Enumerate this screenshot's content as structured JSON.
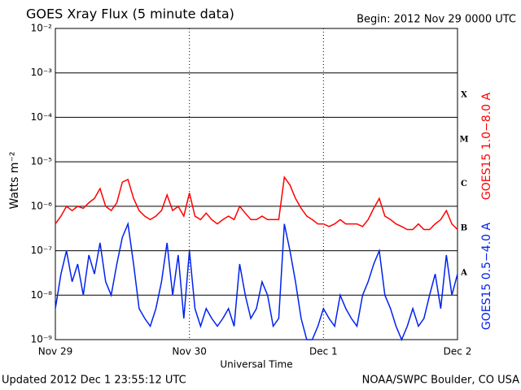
{
  "chart_data": {
    "type": "line",
    "title": "GOES Xray Flux (5 minute data)",
    "subtitle": "Begin:  2012 Nov 29 0000 UTC",
    "ylabel": "Watts m⁻²",
    "xlabel": "Universal Time",
    "footer_left": "Updated 2012 Dec  1 23:55:12 UTC",
    "footer_right": "NOAA/SWPC Boulder, CO USA",
    "flux_classes": [
      "X",
      "M",
      "C",
      "B",
      "A"
    ],
    "log_y": true,
    "grid": true,
    "xlim": [
      0,
      72
    ],
    "xticks": [
      {
        "value": 0,
        "label": "Nov 29"
      },
      {
        "value": 24,
        "label": "Nov 30"
      },
      {
        "value": 48,
        "label": "Dec 1"
      },
      {
        "value": 72,
        "label": "Dec 2"
      }
    ],
    "ylim": [
      1e-09,
      0.01
    ],
    "yticks": [
      {
        "value": 1e-09,
        "label": "10⁻⁹"
      },
      {
        "value": 1e-08,
        "label": "10⁻⁸"
      },
      {
        "value": 1e-07,
        "label": "10⁻⁷"
      },
      {
        "value": 1e-06,
        "label": "10⁻⁶"
      },
      {
        "value": 1e-05,
        "label": "10⁻⁵"
      },
      {
        "value": 0.0001,
        "label": "10⁻⁴"
      },
      {
        "value": 0.001,
        "label": "10⁻³"
      },
      {
        "value": 0.01,
        "label": "10⁻²"
      }
    ],
    "x": [
      0,
      1,
      2,
      3,
      4,
      5,
      6,
      7,
      8,
      9,
      10,
      11,
      12,
      13,
      14,
      15,
      16,
      17,
      18,
      19,
      20,
      21,
      22,
      23,
      24,
      25,
      26,
      27,
      28,
      29,
      30,
      31,
      32,
      33,
      34,
      35,
      36,
      37,
      38,
      39,
      40,
      41,
      42,
      43,
      44,
      45,
      46,
      47,
      48,
      49,
      50,
      51,
      52,
      53,
      54,
      55,
      56,
      57,
      58,
      59,
      60,
      61,
      62,
      63,
      64,
      65,
      66,
      67,
      68,
      69,
      70,
      71,
      72
    ],
    "series": [
      {
        "name": "GOES15 1.0−8.0 A",
        "color": "#ff0000",
        "values": [
          4e-07,
          6e-07,
          1e-06,
          8e-07,
          1e-06,
          9e-07,
          1.2e-06,
          1.5e-06,
          2.5e-06,
          1e-06,
          8e-07,
          1.2e-06,
          3.5e-06,
          4e-06,
          1.5e-06,
          8e-07,
          6e-07,
          5e-07,
          6e-07,
          8e-07,
          1.8e-06,
          8e-07,
          1e-06,
          6e-07,
          2e-06,
          6e-07,
          5e-07,
          7e-07,
          5e-07,
          4e-07,
          5e-07,
          6e-07,
          5e-07,
          1e-06,
          7e-07,
          5e-07,
          5e-07,
          6e-07,
          5e-07,
          5e-07,
          5e-07,
          4.5e-06,
          3e-06,
          1.5e-06,
          9e-07,
          6e-07,
          5e-07,
          4e-07,
          4e-07,
          3.5e-07,
          4e-07,
          5e-07,
          4e-07,
          4e-07,
          4e-07,
          3.5e-07,
          5e-07,
          9e-07,
          1.5e-06,
          6e-07,
          5e-07,
          4e-07,
          3.5e-07,
          3e-07,
          3e-07,
          4e-07,
          3e-07,
          3e-07,
          4e-07,
          5e-07,
          8e-07,
          4e-07,
          3e-07
        ]
      },
      {
        "name": "GOES15 0.5−4.0 A",
        "color": "#0022ee",
        "values": [
          5e-09,
          3e-08,
          1e-07,
          2e-08,
          5e-08,
          1e-08,
          8e-08,
          3e-08,
          1.5e-07,
          2e-08,
          1e-08,
          5e-08,
          2e-07,
          4e-07,
          5e-08,
          5e-09,
          3e-09,
          2e-09,
          5e-09,
          2e-08,
          1.5e-07,
          1e-08,
          8e-08,
          3e-09,
          1e-07,
          5e-09,
          2e-09,
          5e-09,
          3e-09,
          2e-09,
          3e-09,
          5e-09,
          2e-09,
          5e-08,
          1e-08,
          3e-09,
          5e-09,
          2e-08,
          1e-08,
          2e-09,
          3e-09,
          4e-07,
          1e-07,
          2e-08,
          3e-09,
          1e-09,
          1e-09,
          2e-09,
          5e-09,
          3e-09,
          2e-09,
          1e-08,
          5e-09,
          3e-09,
          2e-09,
          1e-08,
          2e-08,
          5e-08,
          1e-07,
          1e-08,
          5e-09,
          2e-09,
          1e-09,
          2e-09,
          5e-09,
          2e-09,
          3e-09,
          1e-08,
          3e-08,
          5e-09,
          8e-08,
          1e-08,
          3e-08
        ]
      }
    ]
  }
}
